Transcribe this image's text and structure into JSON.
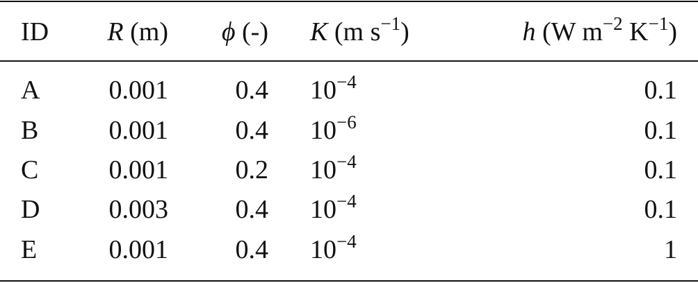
{
  "table": {
    "header": [
      {
        "symbol": "ID",
        "unit": []
      },
      {
        "symbol": "R",
        "unit": [
          {
            "text": "(m)"
          }
        ]
      },
      {
        "symbol": "ϕ",
        "unit": [
          {
            "text": "(-)"
          }
        ]
      },
      {
        "symbol": "K",
        "unit": [
          {
            "text": "(m s"
          },
          {
            "sup": "−1"
          },
          {
            "text": ")"
          }
        ]
      },
      {
        "symbol": "h",
        "unit": [
          {
            "text": "(W m"
          },
          {
            "sup": "−2"
          },
          {
            "text": " K"
          },
          {
            "sup": "−1"
          },
          {
            "text": ")"
          }
        ]
      }
    ],
    "rows": [
      [
        "A",
        "0.001",
        "0.4",
        {
          "base": "10",
          "exp": "−4"
        },
        "0.1"
      ],
      [
        "B",
        "0.001",
        "0.4",
        {
          "base": "10",
          "exp": "−6"
        },
        "0.1"
      ],
      [
        "C",
        "0.001",
        "0.2",
        {
          "base": "10",
          "exp": "−4"
        },
        "0.1"
      ],
      [
        "D",
        "0.003",
        "0.4",
        {
          "base": "10",
          "exp": "−4"
        },
        "0.1"
      ],
      [
        "E",
        "0.001",
        "0.4",
        {
          "base": "10",
          "exp": "−4"
        },
        "1"
      ]
    ]
  }
}
